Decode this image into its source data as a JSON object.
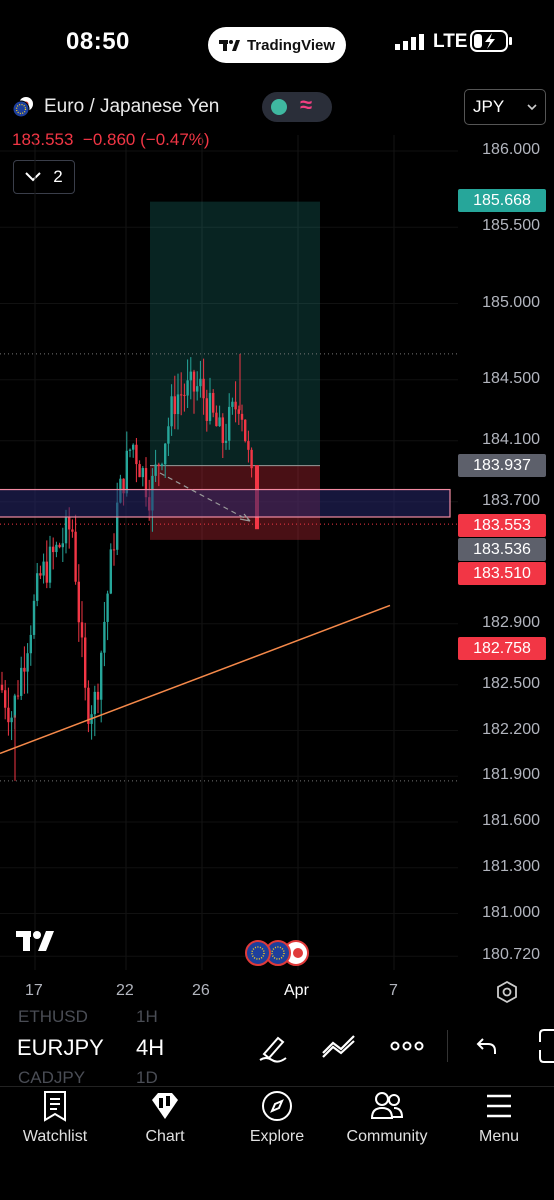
{
  "status_bar": {
    "time": "08:50",
    "app_pill": "TradingView",
    "network": "LTE"
  },
  "header": {
    "symbol_title": "Euro / Japanese Yen",
    "last_price": "183.553",
    "change": "−0.860",
    "change_pct": "(−0.47%)",
    "indicator_count": "2",
    "currency": "JPY"
  },
  "price_axis": {
    "ticks": [
      "186.000",
      "185.500",
      "185.000",
      "184.500",
      "184.100",
      "183.700",
      "182.900",
      "182.500",
      "182.200",
      "181.900",
      "181.600",
      "181.300",
      "181.000",
      "180.720"
    ],
    "tags": [
      {
        "label": "185.668",
        "color": "#26a69a"
      },
      {
        "label": "183.937",
        "color": "#5d606b"
      },
      {
        "label": "183.553",
        "color": "#f23645"
      },
      {
        "label": "183.536",
        "color": "#5d606b"
      },
      {
        "label": "183.510",
        "color": "#f23645"
      },
      {
        "label": "182.758",
        "color": "#f23645"
      }
    ]
  },
  "time_axis": {
    "labels": [
      "17",
      "22",
      "26",
      "Apr",
      "7"
    ]
  },
  "chart_data": {
    "type": "candlestick",
    "symbol": "EURJPY",
    "interval": "4H",
    "ylim": [
      180.72,
      186.05
    ],
    "x_labels": [
      "17",
      "22",
      "26",
      "Apr",
      "7"
    ],
    "long_position": {
      "target": 185.668,
      "entry": 183.937,
      "stop": 183.45
    },
    "zone": {
      "top": 183.78,
      "bottom": 183.6
    },
    "trendline": {
      "from": 182.05,
      "to": 183.02
    },
    "horizontal_lines": [
      184.67,
      181.87,
      183.553
    ]
  },
  "symbol_bar": {
    "symbol": "EURJPY",
    "interval": "4H",
    "ghost_prev_symbol": "ETHUSD",
    "ghost_prev_tf": "1H",
    "ghost_next_symbol": "CADJPY",
    "ghost_next_tf": "1D"
  },
  "bottom_nav": [
    {
      "label": "Watchlist",
      "icon": "watchlist-icon"
    },
    {
      "label": "Chart",
      "icon": "chart-icon"
    },
    {
      "label": "Explore",
      "icon": "compass-icon"
    },
    {
      "label": "Community",
      "icon": "community-icon"
    },
    {
      "label": "Menu",
      "icon": "menu-icon"
    }
  ],
  "colors": {
    "up": "#26a69a",
    "down": "#f23645",
    "trend": "#f5894a",
    "zone_fill": "#22225a",
    "zone_border": "#f28ba2"
  }
}
